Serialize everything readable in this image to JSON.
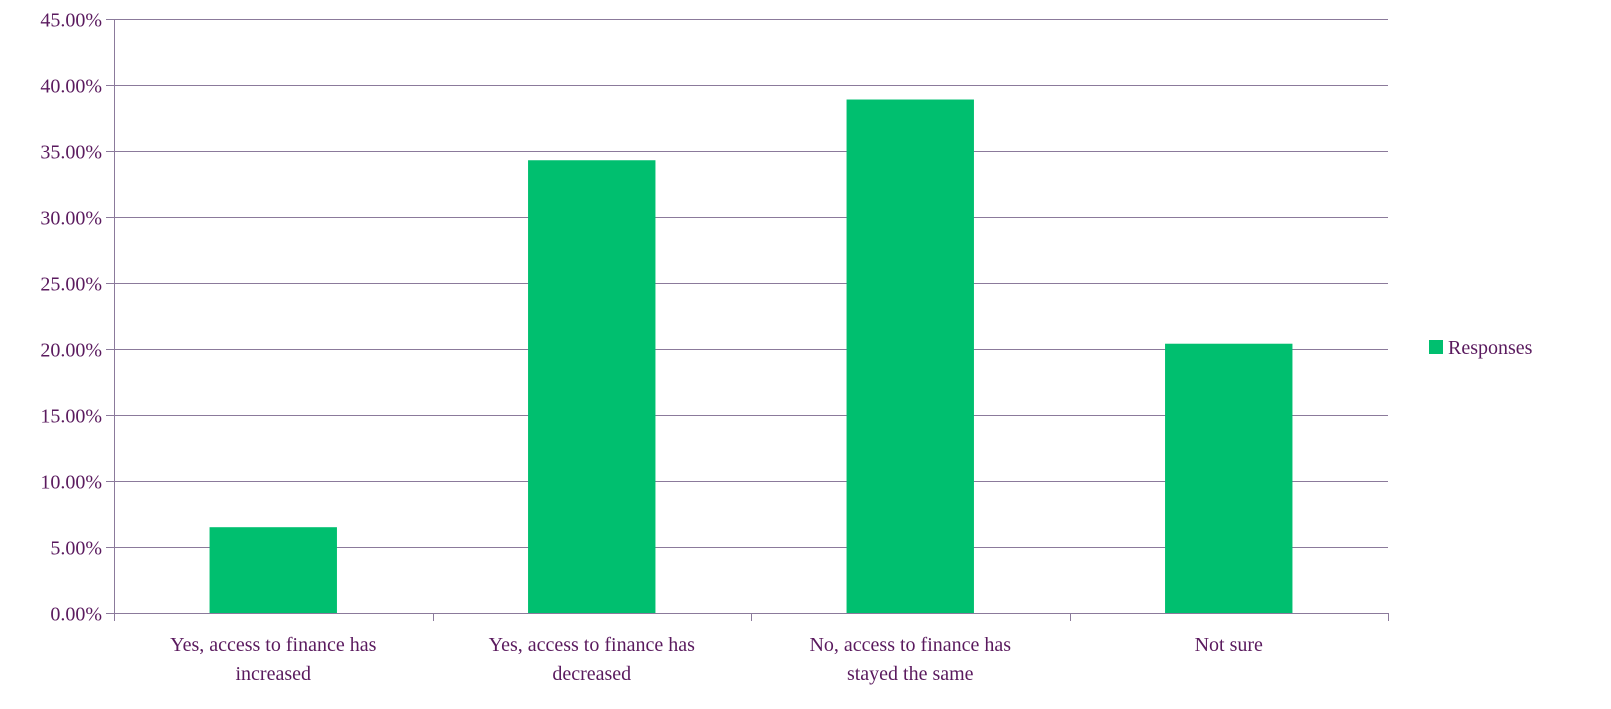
{
  "chart_data": {
    "type": "bar",
    "title": "",
    "xlabel": "",
    "ylabel": "",
    "categories": [
      [
        "Yes, access to finance has",
        "increased"
      ],
      [
        "Yes, access to finance has",
        "decreased"
      ],
      [
        "No, access to finance has",
        "stayed the same"
      ],
      [
        "Not sure"
      ]
    ],
    "series": [
      {
        "name": "Responses",
        "values": [
          6.5,
          34.3,
          38.9,
          20.4
        ]
      }
    ],
    "ylim": [
      0,
      45
    ],
    "yticks": [
      0,
      5,
      10,
      15,
      20,
      25,
      30,
      35,
      40,
      45
    ],
    "ytick_labels": [
      "0.00%",
      "5.00%",
      "10.00%",
      "15.00%",
      "20.00%",
      "25.00%",
      "30.00%",
      "35.00%",
      "40.00%",
      "45.00%"
    ],
    "grid": true,
    "legend": {
      "placement": "right",
      "entries": [
        "Responses"
      ]
    },
    "colors": {
      "bar": "#00bf6f",
      "grid": "#8b7a9b",
      "axis": "#8b7a9b",
      "text": "#5a1a5e"
    }
  }
}
